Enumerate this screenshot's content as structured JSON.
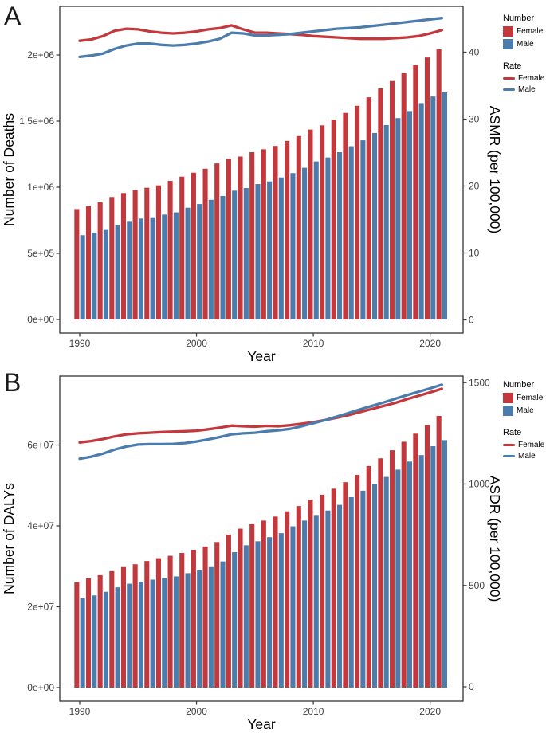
{
  "colors": {
    "female": "#C2383C",
    "male": "#4C7CAC",
    "border": "#333333",
    "tick_text": "#404040"
  },
  "legend": {
    "number_title": "Number",
    "rate_title": "Rate",
    "female_label": "Female",
    "male_label": "Male"
  },
  "chart_data": [
    {
      "panel": "A",
      "type": "bar+line",
      "xlabel": "Year",
      "x_years": [
        1990,
        1991,
        1992,
        1993,
        1994,
        1995,
        1996,
        1997,
        1998,
        1999,
        2000,
        2001,
        2002,
        2003,
        2004,
        2005,
        2006,
        2007,
        2008,
        2009,
        2010,
        2011,
        2012,
        2013,
        2014,
        2015,
        2016,
        2017,
        2018,
        2019,
        2020,
        2021
      ],
      "x_axis_ticks": [
        1990,
        2000,
        2010,
        2020
      ],
      "left_axis": {
        "label": "Number of Deaths",
        "ticks": [
          {
            "v": 0,
            "t": "0e+00"
          },
          {
            "v": 500000,
            "t": "5e+05"
          },
          {
            "v": 1000000,
            "t": "1e+06"
          },
          {
            "v": 1500000,
            "t": "1.5e+06"
          },
          {
            "v": 2000000,
            "t": "2e+06"
          }
        ]
      },
      "right_axis": {
        "label": "ASMR (per 100,000)",
        "ticks": [
          {
            "v": 0,
            "t": "0"
          },
          {
            "v": 10,
            "t": "10"
          },
          {
            "v": 20,
            "t": "20"
          },
          {
            "v": 30,
            "t": "30"
          },
          {
            "v": 40,
            "t": "40"
          }
        ]
      },
      "bars_number": {
        "series": [
          {
            "name": "Female",
            "values": [
              835000,
              856000,
              886000,
              926000,
              956000,
              978000,
              996000,
              1014000,
              1048000,
              1080000,
              1110000,
              1140000,
              1180000,
              1215000,
              1232000,
              1265000,
              1287000,
              1312000,
              1350000,
              1387000,
              1436000,
              1468000,
              1510000,
              1562000,
              1616000,
              1680000,
              1747000,
              1803000,
              1863000,
              1924000,
              1981000,
              2043000
            ]
          },
          {
            "name": "Male",
            "values": [
              637000,
              657000,
              677000,
              713000,
              739000,
              763000,
              773000,
              793000,
              810000,
              845000,
              873000,
              905000,
              934000,
              974000,
              994000,
              1024000,
              1044000,
              1074000,
              1107000,
              1147000,
              1195000,
              1225000,
              1265000,
              1310000,
              1355000,
              1410000,
              1470000,
              1523000,
              1576000,
              1636000,
              1686000,
              1717000
            ]
          }
        ]
      },
      "lines_rate": {
        "series": [
          {
            "name": "Female",
            "values": [
              41.7,
              41.9,
              42.4,
              43.2,
              43.5,
              43.4,
              43.1,
              42.9,
              42.8,
              42.9,
              43.1,
              43.4,
              43.6,
              44.0,
              43.4,
              42.9,
              42.9,
              42.8,
              42.7,
              42.6,
              42.4,
              42.3,
              42.2,
              42.1,
              42.0,
              42.0,
              42.0,
              42.1,
              42.2,
              42.4,
              42.8,
              43.3
            ]
          },
          {
            "name": "Male",
            "values": [
              39.3,
              39.5,
              39.8,
              40.5,
              41.0,
              41.3,
              41.3,
              41.1,
              41.0,
              41.1,
              41.3,
              41.6,
              42.0,
              42.9,
              42.8,
              42.5,
              42.5,
              42.6,
              42.7,
              42.9,
              43.1,
              43.3,
              43.5,
              43.6,
              43.7,
              43.9,
              44.1,
              44.3,
              44.5,
              44.7,
              44.9,
              45.1
            ]
          }
        ]
      }
    },
    {
      "panel": "B",
      "type": "bar+line",
      "xlabel": "Year",
      "x_years": [
        1990,
        1991,
        1992,
        1993,
        1994,
        1995,
        1996,
        1997,
        1998,
        1999,
        2000,
        2001,
        2002,
        2003,
        2004,
        2005,
        2006,
        2007,
        2008,
        2009,
        2010,
        2011,
        2012,
        2013,
        2014,
        2015,
        2016,
        2017,
        2018,
        2019,
        2020,
        2021
      ],
      "x_axis_ticks": [
        1990,
        2000,
        2010,
        2020
      ],
      "left_axis": {
        "label": "Number of DALYs",
        "ticks": [
          {
            "v": 0,
            "t": "0e+00"
          },
          {
            "v": 20000000,
            "t": "2e+07"
          },
          {
            "v": 40000000,
            "t": "4e+07"
          },
          {
            "v": 60000000,
            "t": "6e+07"
          }
        ]
      },
      "right_axis": {
        "label": "ASDR (per 100,000)",
        "ticks": [
          {
            "v": 0,
            "t": "0"
          },
          {
            "v": 500,
            "t": "500"
          },
          {
            "v": 1000,
            "t": "1000"
          },
          {
            "v": 1500,
            "t": "1500"
          }
        ]
      },
      "bars_number": {
        "series": [
          {
            "name": "Female",
            "values": [
              26100000,
              27000000,
              27800000,
              28800000,
              29800000,
              30500000,
              31300000,
              32000000,
              32600000,
              33300000,
              34100000,
              34900000,
              36000000,
              37800000,
              39300000,
              40400000,
              41300000,
              42300000,
              43600000,
              44900000,
              46500000,
              47700000,
              49200000,
              50800000,
              52600000,
              54800000,
              56700000,
              58700000,
              60800000,
              62800000,
              64900000,
              67200000
            ]
          },
          {
            "name": "Male",
            "values": [
              22100000,
              22800000,
              23700000,
              24800000,
              25700000,
              26200000,
              26700000,
              27100000,
              27500000,
              28300000,
              29000000,
              29800000,
              31200000,
              33500000,
              35200000,
              36200000,
              37200000,
              38200000,
              39900000,
              41300000,
              42500000,
              43800000,
              45200000,
              47100000,
              48700000,
              50300000,
              52100000,
              53900000,
              55900000,
              57500000,
              59700000,
              61200000
            ]
          }
        ]
      },
      "lines_rate": {
        "series": [
          {
            "name": "Female",
            "values": [
              1205,
              1212,
              1222,
              1235,
              1245,
              1250,
              1253,
              1256,
              1258,
              1260,
              1263,
              1270,
              1278,
              1288,
              1285,
              1283,
              1287,
              1285,
              1290,
              1297,
              1305,
              1315,
              1327,
              1340,
              1355,
              1370,
              1385,
              1400,
              1418,
              1435,
              1452,
              1470
            ]
          },
          {
            "name": "Male",
            "values": [
              1125,
              1135,
              1150,
              1170,
              1185,
              1195,
              1197,
              1197,
              1198,
              1202,
              1210,
              1220,
              1232,
              1245,
              1250,
              1253,
              1260,
              1265,
              1272,
              1285,
              1300,
              1315,
              1332,
              1350,
              1368,
              1385,
              1402,
              1420,
              1438,
              1455,
              1472,
              1490
            ]
          }
        ]
      }
    }
  ]
}
